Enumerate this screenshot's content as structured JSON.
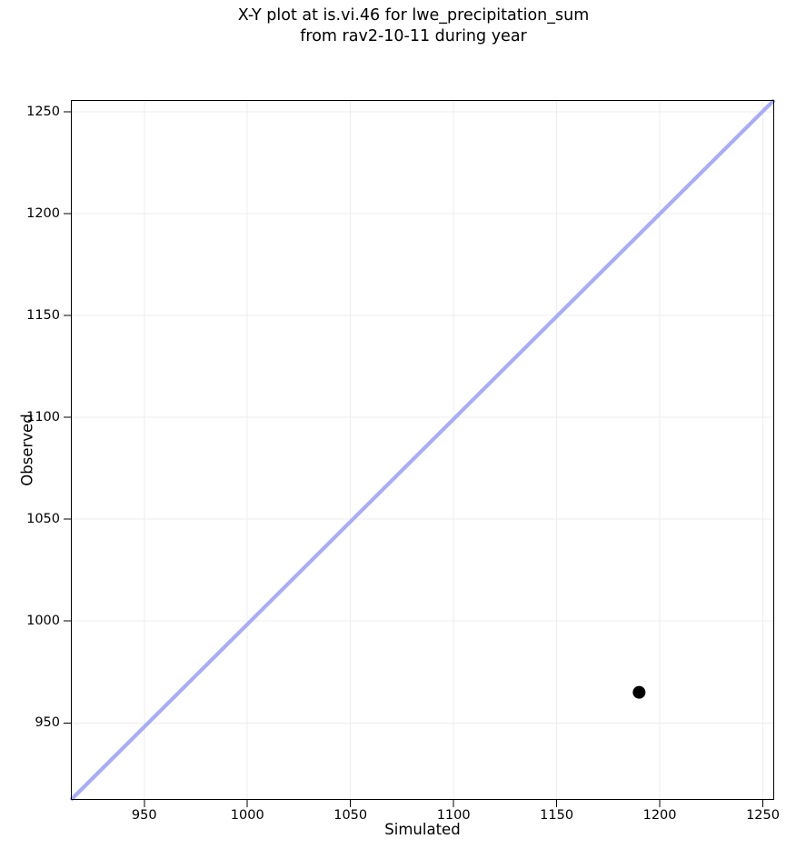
{
  "chart_data": {
    "type": "scatter",
    "title": "X-Y plot at is.vi.46 for lwe_precipitation_sum\nfrom rav2-10-11 during year",
    "title_lines": [
      "X-Y plot at is.vi.46 for lwe_precipitation_sum",
      "from rav2-10-11 during year"
    ],
    "xlabel": "Simulated",
    "ylabel": "Observed",
    "x_ticks": [
      950,
      1000,
      1050,
      1100,
      1150,
      1200,
      1250
    ],
    "y_ticks": [
      950,
      1000,
      1050,
      1100,
      1150,
      1200,
      1250
    ],
    "xlim": [
      914.4,
      1255.5
    ],
    "ylim": [
      912.2,
      1255.7
    ],
    "grid": true,
    "legend_position": "none",
    "points": [
      {
        "x": 1190,
        "y": 965
      }
    ],
    "reference_line": {
      "kind": "y=x",
      "color": "#a8adf4",
      "stroke_width": 4.2
    },
    "marker": {
      "shape": "circle",
      "radius_px": 7,
      "color": "#000000"
    },
    "colors": {
      "background": "#ffffff",
      "grid": "#ededed",
      "spine": "#000000",
      "tick": "#000000",
      "text": "#000000"
    }
  }
}
